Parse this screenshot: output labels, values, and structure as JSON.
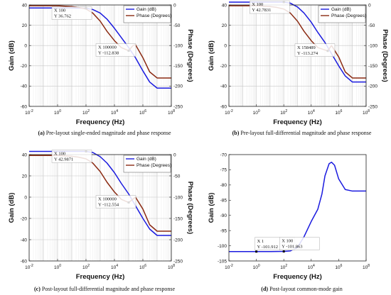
{
  "chart_data": [
    {
      "type": "line",
      "caption_tag": "(a)",
      "caption_text": "Pre-layout single-ended magnitude and phase response",
      "xlabel": "Frequency (Hz)",
      "ylabel": "Gain (dB)",
      "y2label": "Phase (Degrees)",
      "xscale": "log",
      "xlim": [
        0.01,
        100000000
      ],
      "ylim": [
        -60,
        40
      ],
      "y2lim": [
        -250,
        0
      ],
      "xticks": [
        "10-2",
        "100",
        "102",
        "104",
        "106",
        "108"
      ],
      "yticks": [
        "-60",
        "-40",
        "-20",
        "0",
        "20",
        "40"
      ],
      "y2ticks": [
        "-250",
        "-200",
        "-150",
        "-100",
        "-50",
        "0"
      ],
      "grid": true,
      "legend": "top-right",
      "series": [
        {
          "name": "Gain (dB)",
          "color": "#1a1adf",
          "axis": "left",
          "x": [
            0.01,
            1,
            10,
            100,
            300,
            1000,
            3000,
            10000,
            30000,
            100000,
            300000,
            1000000,
            3000000,
            10000000,
            100000000
          ],
          "y": [
            37,
            37,
            37,
            36.76,
            35.5,
            32,
            26,
            17,
            8,
            -2,
            -12,
            -25,
            -36,
            -42,
            -42
          ]
        },
        {
          "name": "Phase (Degrees)",
          "color": "#8b2a12",
          "axis": "right",
          "x": [
            0.01,
            1,
            10,
            30,
            100,
            300,
            1000,
            3000,
            10000,
            30000,
            100000,
            200000,
            300000,
            1000000,
            3000000,
            10000000,
            100000000
          ],
          "y": [
            -2,
            -2,
            -4,
            -6,
            -10,
            -20,
            -40,
            -65,
            -88,
            -105,
            -112.8,
            -100,
            -98,
            -130,
            -165,
            -180,
            -180
          ]
        }
      ],
      "annotations": [
        {
          "x": 100,
          "y": 36.762,
          "axis": "left",
          "lines": [
            "X 100",
            "Y 36.762"
          ]
        },
        {
          "x": 100000,
          "y": -112.838,
          "axis": "right",
          "lines": [
            "X 100000",
            "Y -112.838"
          ]
        }
      ]
    },
    {
      "type": "line",
      "caption_tag": "(b)",
      "caption_text": "Pre-layout full-differential magnitude and phase response",
      "xlabel": "Frequency (Hz)",
      "ylabel": "Gain (dB)",
      "y2label": "Phase (Degrees)",
      "xscale": "log",
      "xlim": [
        0.01,
        100000000
      ],
      "ylim": [
        -60,
        40
      ],
      "y2lim": [
        -250,
        0
      ],
      "xticks": [
        "10-2",
        "100",
        "102",
        "104",
        "106",
        "108"
      ],
      "yticks": [
        "-60",
        "-40",
        "-20",
        "0",
        "20",
        "40"
      ],
      "y2ticks": [
        "-250",
        "-200",
        "-150",
        "-100",
        "-50",
        "0"
      ],
      "grid": true,
      "legend": "top-right",
      "series": [
        {
          "name": "Gain (dB)",
          "color": "#1a1adf",
          "axis": "left",
          "x": [
            0.01,
            1,
            10,
            100,
            300,
            1000,
            3000,
            10000,
            30000,
            100000,
            300000,
            1000000,
            3000000,
            10000000,
            100000000
          ],
          "y": [
            42.8,
            42.8,
            42.8,
            42.78,
            41.8,
            38,
            32,
            23,
            13,
            3,
            -8,
            -20,
            -30,
            -36,
            -36
          ]
        },
        {
          "name": "Phase (Degrees)",
          "color": "#8b2a12",
          "axis": "right",
          "x": [
            0.01,
            1,
            10,
            30,
            100,
            300,
            1000,
            3000,
            10000,
            30000,
            158489,
            300000,
            1000000,
            3000000,
            10000000,
            100000000
          ],
          "y": [
            -2,
            -2,
            -4,
            -6,
            -10,
            -20,
            -40,
            -65,
            -88,
            -105,
            -113.3,
            -100,
            -128,
            -165,
            -180,
            -180
          ]
        }
      ],
      "annotations": [
        {
          "x": 100,
          "y": 42.7831,
          "axis": "left",
          "lines": [
            "X 100",
            "Y 42.7831"
          ]
        },
        {
          "x": 158489,
          "y": -113.274,
          "axis": "right",
          "lines": [
            "X 158489",
            "Y -113.274"
          ]
        }
      ]
    },
    {
      "type": "line",
      "caption_tag": "(c)",
      "caption_text": "Post-layout full-differential magnitude and phase response",
      "xlabel": "Frequency (Hz)",
      "ylabel": "Gain (dB)",
      "y2label": "Phase (Degrees)",
      "xscale": "log",
      "xlim": [
        0.01,
        100000000
      ],
      "ylim": [
        -60,
        40
      ],
      "y2lim": [
        -250,
        0
      ],
      "xticks": [
        "10-2",
        "100",
        "102",
        "104",
        "106",
        "108"
      ],
      "yticks": [
        "-60",
        "-40",
        "-20",
        "0",
        "20",
        "40"
      ],
      "y2ticks": [
        "-250",
        "-200",
        "-150",
        "-100",
        "-50",
        "0"
      ],
      "grid": true,
      "legend": "top-right",
      "series": [
        {
          "name": "Gain (dB)",
          "color": "#1a1adf",
          "axis": "left",
          "x": [
            0.01,
            1,
            10,
            100,
            300,
            1000,
            3000,
            10000,
            30000,
            100000,
            300000,
            1000000,
            3000000,
            10000000,
            100000000
          ],
          "y": [
            43,
            43,
            43,
            42.99,
            42,
            38,
            32,
            23,
            13,
            3,
            -8,
            -20,
            -30,
            -36,
            -36
          ]
        },
        {
          "name": "Phase (Degrees)",
          "color": "#8b2a12",
          "axis": "right",
          "x": [
            0.01,
            1,
            10,
            30,
            100,
            300,
            1000,
            3000,
            10000,
            30000,
            100000,
            300000,
            1000000,
            3000000,
            10000000,
            100000000
          ],
          "y": [
            -2,
            -2,
            -4,
            -6,
            -10,
            -20,
            -40,
            -65,
            -88,
            -105,
            -112.6,
            -100,
            -128,
            -165,
            -180,
            -180
          ]
        }
      ],
      "annotations": [
        {
          "x": 100,
          "y": 42.9871,
          "axis": "left",
          "lines": [
            "X 100",
            "Y 42.9871"
          ]
        },
        {
          "x": 100000,
          "y": -112.554,
          "axis": "right",
          "lines": [
            "X 100000",
            "Y -112.554"
          ]
        }
      ]
    },
    {
      "type": "line",
      "caption_tag": "(d)",
      "caption_text": "Post-layout common-mode gain",
      "xlabel": "Frequency (Hz)",
      "ylabel": "Gain (dB)",
      "y2label": "",
      "xscale": "log",
      "xlim": [
        0.01,
        100000000
      ],
      "ylim": [
        -105,
        -70
      ],
      "xticks": [
        "10-2",
        "100",
        "102",
        "104",
        "106",
        "108"
      ],
      "yticks": [
        "-105",
        "-100",
        "-95",
        "-90",
        "-85",
        "-80",
        "-75",
        "-70"
      ],
      "y2ticks": [],
      "grid": false,
      "legend": "",
      "series": [
        {
          "name": "",
          "color": "#1a1adf",
          "axis": "left",
          "x": [
            0.01,
            1,
            10,
            100,
            300,
            1000,
            3000,
            10000,
            30000,
            60000,
            100000,
            200000,
            300000,
            500000,
            1000000,
            3000000,
            10000000,
            100000000
          ],
          "y": [
            -101.9,
            -101.9,
            -101.9,
            -101.86,
            -101.7,
            -100.5,
            -97,
            -92,
            -88,
            -83,
            -77,
            -73,
            -72.5,
            -73.5,
            -78,
            -81.5,
            -82,
            -82
          ]
        }
      ],
      "annotations": [
        {
          "x": 1,
          "y": -101.912,
          "axis": "left",
          "lines": [
            "X 1",
            "Y -101.912"
          ]
        },
        {
          "x": 100,
          "y": -101.863,
          "axis": "left",
          "lines": [
            "X 100",
            "Y -101.863"
          ]
        }
      ]
    }
  ]
}
